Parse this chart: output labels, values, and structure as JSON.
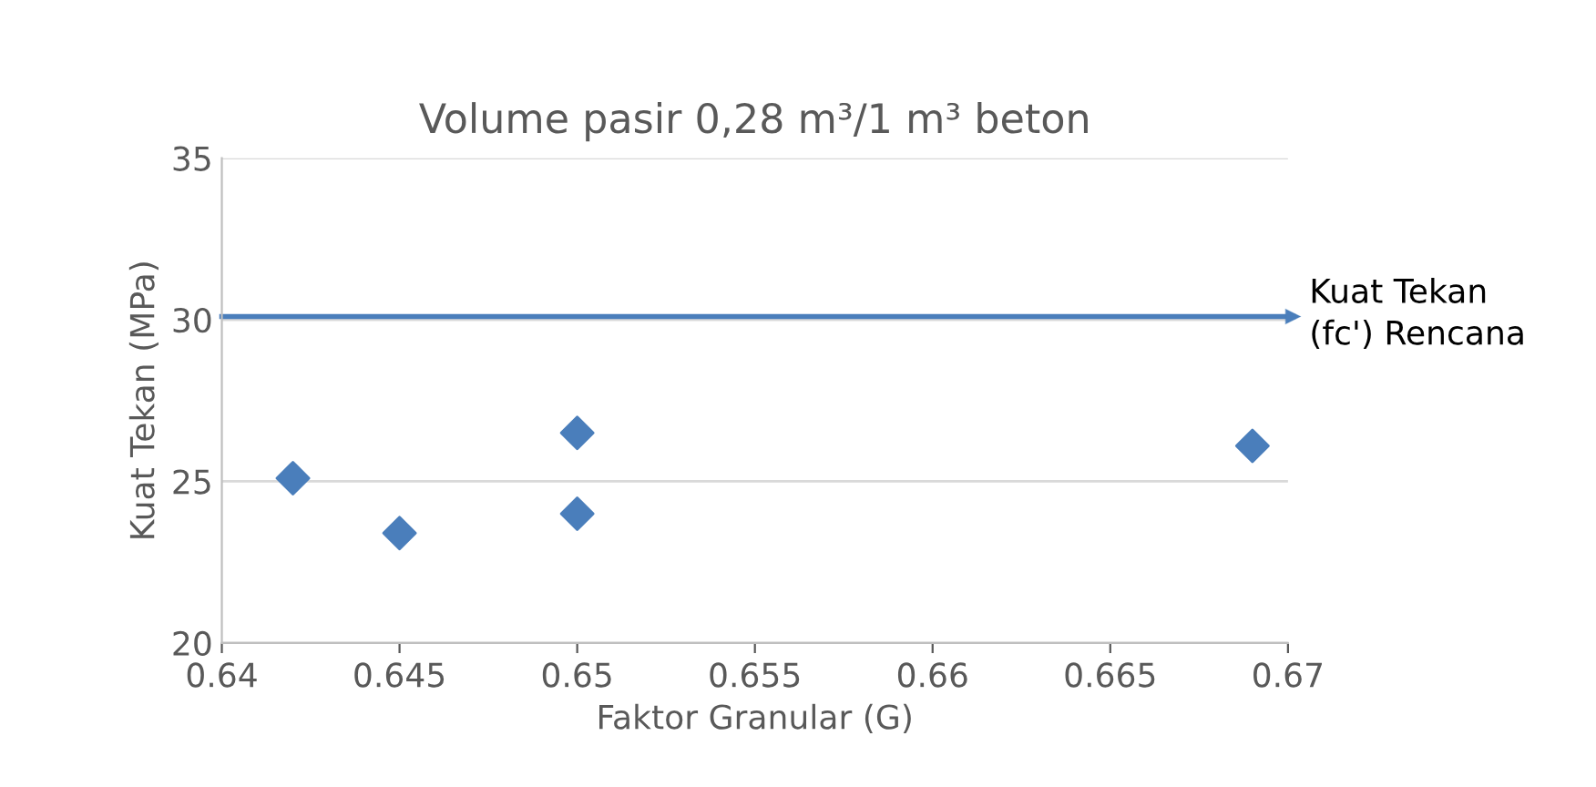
{
  "chart_data": {
    "type": "scatter",
    "title": "Volume pasir 0,28 m³/1 m³ beton",
    "xlabel": "Faktor Granular (G)",
    "ylabel": "Kuat Tekan (MPa)",
    "x": [
      0.642,
      0.645,
      0.65,
      0.65,
      0.669
    ],
    "series": [
      {
        "color": "#4a7ebb",
        "values": [
          25.1,
          23.4,
          26.5,
          24.0,
          26.1
        ]
      }
    ],
    "xlim": [
      0.64,
      0.67
    ],
    "xticks": [
      0.64,
      0.645,
      0.65,
      0.655,
      0.66,
      0.665,
      0.67
    ],
    "ylim": [
      20,
      35
    ],
    "yticks": [
      20,
      25,
      30,
      35
    ],
    "ref_lines": [
      {
        "axis": "y",
        "value": 30.1,
        "label": "Kuat Tekan\n(fc') Rencana",
        "color": "#4a7ebb"
      }
    ],
    "grid": "y",
    "marker": "diamond"
  }
}
